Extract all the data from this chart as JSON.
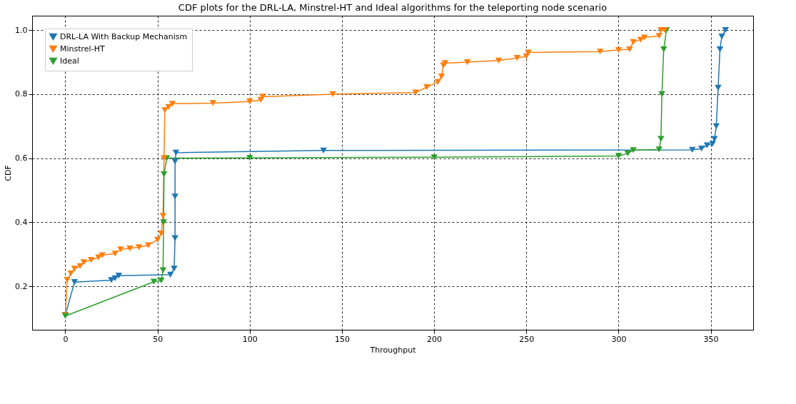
{
  "chart_data": {
    "type": "line",
    "title": "CDF plots for the DRL-LA, Minstrel-HT and Ideal algorithms for the teleporting node scenario",
    "xlabel": "Throughput",
    "ylabel": "CDF",
    "series": [
      {
        "name": "DRL-LA With Backup Mechanism",
        "color": "#1f77b4",
        "x": [
          0,
          5,
          25,
          27,
          29,
          57,
          59,
          59.5,
          59.5,
          59.5,
          60,
          140,
          340,
          345,
          348,
          351,
          352,
          353,
          354,
          355,
          356,
          358
        ],
        "values": [
          0.11,
          0.213,
          0.219,
          0.225,
          0.233,
          0.236,
          0.255,
          0.35,
          0.48,
          0.59,
          0.617,
          0.624,
          0.626,
          0.63,
          0.64,
          0.645,
          0.66,
          0.7,
          0.82,
          0.94,
          0.98,
          1.0
        ]
      },
      {
        "name": "Minstrel-HT",
        "color": "#ff7f0e",
        "x": [
          0,
          1,
          3,
          5,
          8,
          10,
          14,
          18,
          20,
          27,
          30,
          35,
          40,
          45,
          50,
          52,
          53,
          53.5,
          54,
          56,
          58,
          80,
          100,
          106,
          107,
          145,
          190,
          196,
          202,
          204,
          205,
          206,
          218,
          235,
          245,
          250,
          251,
          290,
          300,
          306,
          308,
          312,
          314,
          322,
          323,
          325
        ],
        "values": [
          0.11,
          0.22,
          0.24,
          0.255,
          0.263,
          0.275,
          0.282,
          0.29,
          0.297,
          0.302,
          0.315,
          0.318,
          0.322,
          0.328,
          0.345,
          0.365,
          0.42,
          0.6,
          0.75,
          0.76,
          0.77,
          0.772,
          0.777,
          0.782,
          0.792,
          0.8,
          0.805,
          0.822,
          0.838,
          0.855,
          0.89,
          0.897,
          0.9,
          0.905,
          0.913,
          0.918,
          0.93,
          0.933,
          0.938,
          0.94,
          0.963,
          0.97,
          0.977,
          0.982,
          1.0,
          1.0
        ]
      },
      {
        "name": "Ideal",
        "color": "#2ca02c",
        "x": [
          0,
          48,
          52,
          53,
          53.3,
          53.5,
          55,
          100,
          200,
          300,
          305,
          308,
          322,
          323,
          323.5,
          324.5,
          326
        ],
        "values": [
          0.107,
          0.214,
          0.218,
          0.25,
          0.4,
          0.55,
          0.6,
          0.601,
          0.603,
          0.607,
          0.615,
          0.625,
          0.627,
          0.66,
          0.8,
          0.94,
          1.0
        ]
      }
    ],
    "xlim": [
      -18,
      373
    ],
    "xticks": [
      0,
      50,
      100,
      150,
      200,
      250,
      300,
      350
    ],
    "ylim": [
      0.064,
      1.045
    ],
    "yticks": [
      0.2,
      0.4,
      0.6,
      0.8,
      {
        "value": 1,
        "label": "1.0"
      }
    ],
    "grid": true,
    "legend": "top left",
    "marker": "triangle",
    "line_style": "solid"
  }
}
